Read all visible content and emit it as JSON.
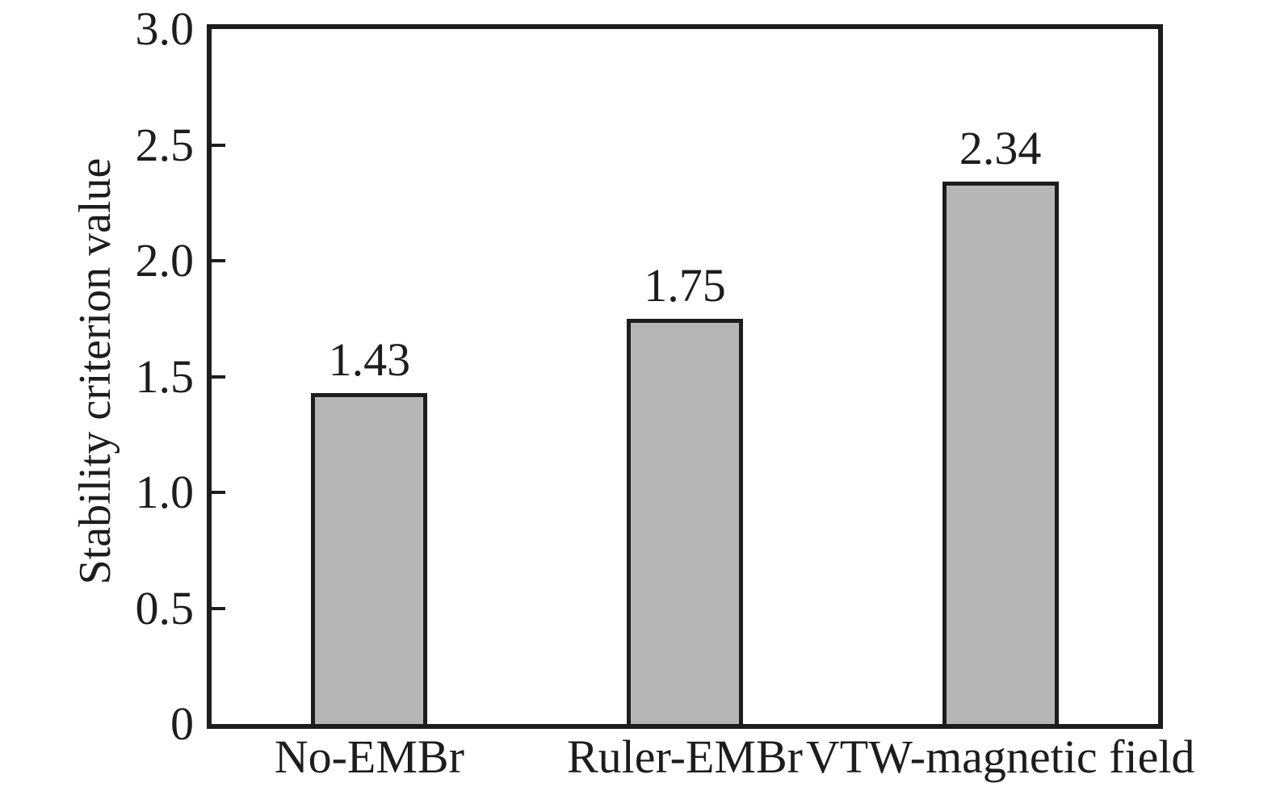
{
  "chart_data": {
    "type": "bar",
    "title": "",
    "categories": [
      "No-EMBr",
      "Ruler-EMBr",
      "VTW-magnetic field"
    ],
    "values": [
      1.43,
      1.75,
      2.34
    ],
    "bar_labels": [
      "1.43",
      "1.75",
      "2.34"
    ],
    "xlabel": "",
    "ylabel": "Stability criterion value",
    "ylim": [
      0,
      3.0
    ],
    "yticks": [
      0,
      0.5,
      1.0,
      1.5,
      2.0,
      2.5,
      3.0
    ],
    "ytick_labels": [
      "0",
      "0.5",
      "1.0",
      "1.5",
      "2.0",
      "2.5",
      "3.0"
    ],
    "grid": false,
    "legend": "none",
    "tick_direction": "in",
    "colors": {
      "background": "#ffffff",
      "bar_fill": "#b6b6b6",
      "bar_edge": "#1d1d1d",
      "axis": "#1d1d1d",
      "text": "#1d1d1d"
    }
  }
}
